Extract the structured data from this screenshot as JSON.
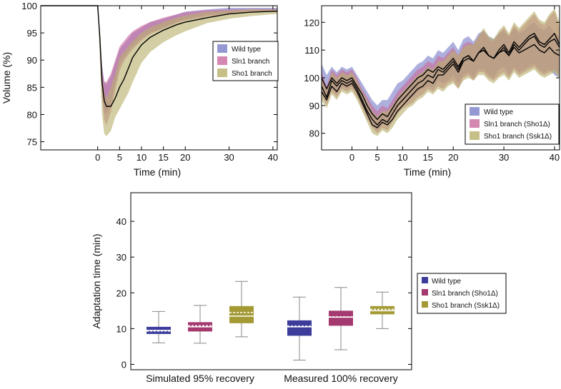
{
  "colors": {
    "wild_type": "#7b7fc8",
    "sln1": "#c96a9d",
    "sho1": "#b8b06a",
    "wild_type_box": "#3c3c9b",
    "sln1_box": "#a4396f",
    "sho1_box": "#a49a35",
    "line": "#000000"
  },
  "chart_data": [
    {
      "type": "area",
      "xlabel": "Time (min)",
      "ylabel": "Volume (%)",
      "xlim": [
        -13,
        41
      ],
      "ylim": [
        73.5,
        100
      ],
      "xticks": [
        0,
        5,
        10,
        15,
        20,
        30,
        40
      ],
      "yticks": [
        75,
        80,
        85,
        90,
        95,
        100
      ],
      "legend_position": "right",
      "legend": [
        "Wild type",
        "Sln1 branch",
        "Sho1 branch"
      ],
      "x": [
        -13,
        0,
        0.5,
        1,
        1.5,
        2,
        3,
        4,
        5,
        6,
        7,
        8,
        10,
        12,
        15,
        18,
        20,
        25,
        30,
        35,
        41
      ],
      "series": [
        {
          "name": "Wild type",
          "upper": [
            100,
            100,
            95,
            89,
            86,
            85.5,
            87,
            89.5,
            92,
            93,
            94,
            95,
            96,
            97,
            97.6,
            98.4,
            98.9,
            99.3,
            99.6,
            99.6,
            99.6
          ],
          "lower": [
            100,
            100,
            93,
            84,
            80.5,
            80,
            82,
            85.5,
            89,
            90.5,
            91.5,
            92.5,
            94,
            95,
            96,
            97,
            97.5,
            98.3,
            98.7,
            99,
            99.1
          ]
        },
        {
          "name": "Sln1 branch",
          "upper": [
            100,
            100,
            94.5,
            88.5,
            86,
            86,
            87.5,
            90,
            92.5,
            93.5,
            94.5,
            95.3,
            96.3,
            97,
            97.8,
            98.4,
            98.8,
            99.2,
            99.3,
            99.4,
            99.4
          ],
          "lower": [
            100,
            100,
            92,
            83,
            79,
            78,
            80.5,
            84.5,
            88,
            89.8,
            91,
            92,
            93.6,
            94.8,
            95.8,
            96.8,
            97.3,
            98,
            98.5,
            98.8,
            99
          ]
        },
        {
          "name": "Sho1 branch",
          "upper": [
            100,
            100,
            94,
            87,
            84,
            83,
            85,
            87.5,
            90.5,
            91.5,
            92.5,
            93.5,
            95,
            96,
            97,
            97.8,
            98.2,
            98.9,
            99.1,
            99.3,
            99.3
          ],
          "lower": [
            100,
            100,
            90,
            80,
            76.5,
            76,
            77,
            79.5,
            81,
            82.5,
            84,
            86,
            89.5,
            91.5,
            93.3,
            94.6,
            95.3,
            96.8,
            97.6,
            98.1,
            98.5
          ]
        }
      ],
      "mean_line": [
        100,
        100,
        94,
        86,
        82.5,
        81.5,
        81.5,
        83,
        85,
        86.5,
        88.5,
        90.5,
        92.8,
        94.2,
        95.5,
        96.5,
        97,
        97.8,
        98.5,
        98.8,
        99
      ]
    },
    {
      "type": "area",
      "xlabel": "Time (min)",
      "ylabel": "",
      "xlim": [
        -6,
        41
      ],
      "ylim": [
        74,
        126
      ],
      "xticks": [
        0,
        5,
        10,
        15,
        20,
        30,
        40
      ],
      "yticks": [
        80,
        90,
        100,
        110,
        120
      ],
      "legend_position": "bottom-right",
      "legend": [
        "Wild type",
        "Sln1 branch (Sho1Δ)",
        "Sho1 branch (Ssk1Δ)"
      ],
      "x": [
        -6,
        -5,
        -4,
        -3,
        -2,
        -1,
        0,
        1,
        2,
        3,
        4,
        5,
        6,
        7,
        8,
        9,
        10,
        11,
        12,
        13,
        14,
        15,
        16,
        17,
        18,
        19,
        20,
        21,
        22,
        23,
        24,
        25,
        26,
        27,
        28,
        29,
        30,
        31,
        32,
        33,
        34,
        35,
        36,
        37,
        38,
        39,
        40,
        41
      ],
      "series": [
        {
          "name": "Wild type",
          "upper": [
            105,
            101,
            104,
            102,
            104,
            103,
            104,
            101,
            98,
            95,
            92,
            90,
            92,
            92,
            95,
            98,
            99,
            101,
            103,
            105,
            106,
            108,
            107,
            110,
            109,
            111,
            113,
            110,
            114,
            115,
            113,
            116,
            117,
            115,
            114,
            116,
            117,
            115,
            118,
            116,
            117,
            119,
            120,
            118,
            117,
            119,
            116,
            115
          ],
          "lower": [
            95,
            92,
            96,
            94,
            97,
            96,
            97,
            94,
            90,
            86,
            83,
            81,
            84,
            83,
            86,
            89,
            91,
            92,
            93,
            95,
            96,
            97,
            96,
            99,
            98,
            99,
            101,
            98,
            101,
            102,
            100,
            103,
            103,
            101,
            100,
            103,
            104,
            101,
            104,
            102,
            103,
            104,
            105,
            103,
            102,
            103,
            101,
            100
          ]
        },
        {
          "name": "Sln1 branch (Sho1Δ)",
          "upper": [
            102,
            97,
            103,
            101,
            103,
            102,
            103,
            100,
            96,
            93,
            90,
            88,
            90,
            89,
            92,
            95,
            97,
            99,
            101,
            103,
            104,
            106,
            105,
            108,
            107,
            109,
            111,
            108,
            112,
            113,
            112,
            115,
            117,
            114,
            113,
            116,
            118,
            115,
            119,
            117,
            119,
            121,
            123,
            120,
            119,
            122,
            124,
            118
          ],
          "lower": [
            94,
            90,
            95,
            93,
            96,
            95,
            96,
            93,
            89,
            85,
            82,
            80,
            82,
            81,
            84,
            87,
            89,
            90,
            91,
            93,
            94,
            96,
            95,
            97,
            96,
            98,
            99,
            96,
            100,
            101,
            99,
            102,
            102,
            100,
            99,
            101,
            102,
            100,
            103,
            101,
            102,
            103,
            104,
            102,
            101,
            102,
            103,
            101
          ]
        },
        {
          "name": "Sho1 branch (Ssk1Δ)",
          "upper": [
            100,
            96,
            102,
            100,
            102,
            101,
            102,
            99,
            95,
            92,
            88,
            86,
            88,
            88,
            90,
            93,
            95,
            97,
            99,
            101,
            102,
            104,
            103,
            106,
            106,
            108,
            110,
            108,
            111,
            112,
            112,
            115,
            118,
            115,
            114,
            117,
            119,
            116,
            120,
            118,
            120,
            122,
            124,
            121,
            120,
            123,
            125,
            120
          ],
          "lower": [
            92,
            89,
            94,
            92,
            95,
            94,
            95,
            92,
            88,
            84,
            80,
            79,
            81,
            80,
            82,
            85,
            87,
            89,
            90,
            92,
            93,
            95,
            94,
            96,
            95,
            97,
            98,
            96,
            99,
            100,
            99,
            101,
            101,
            99,
            98,
            100,
            101,
            99,
            102,
            100,
            101,
            102,
            103,
            101,
            100,
            101,
            102,
            100
          ]
        }
      ],
      "lines": [
        [
          100,
          96,
          100,
          98,
          100,
          99,
          100,
          97,
          94,
          90,
          87,
          85,
          87,
          86,
          89,
          92,
          94,
          96,
          98,
          100,
          101,
          103,
          102,
          104,
          103,
          105,
          107,
          104,
          107,
          108,
          106,
          109,
          110,
          108,
          107,
          109,
          110,
          108,
          111,
          109,
          110,
          111,
          112,
          110,
          109,
          111,
          109,
          108
        ],
        [
          97,
          93,
          99,
          97,
          99,
          98,
          99,
          96,
          92,
          88,
          85,
          83,
          85,
          84,
          87,
          90,
          92,
          94,
          96,
          98,
          99,
          101,
          100,
          103,
          102,
          104,
          106,
          103,
          107,
          108,
          106,
          109,
          110,
          108,
          107,
          109,
          111,
          108,
          112,
          110,
          112,
          114,
          115,
          112,
          111,
          113,
          114,
          111
        ],
        [
          95,
          92,
          97,
          95,
          98,
          97,
          98,
          95,
          91,
          87,
          83,
          82,
          84,
          83,
          85,
          88,
          90,
          92,
          94,
          96,
          97,
          99,
          98,
          101,
          101,
          103,
          105,
          102,
          106,
          107,
          106,
          109,
          111,
          108,
          107,
          110,
          112,
          109,
          113,
          111,
          113,
          115,
          116,
          113,
          112,
          114,
          116,
          112
        ]
      ]
    },
    {
      "type": "box",
      "xlabel": "",
      "ylabel": "Adaptation time (min)",
      "ylim": [
        -1.5,
        48
      ],
      "yticks": [
        0,
        10,
        20,
        30,
        40
      ],
      "categories": [
        "Simulated 95% recovery",
        "Measured 100% recovery"
      ],
      "legend_position": "right",
      "legend": [
        "Wild type",
        "Sln1 branch (Sho1Δ)",
        "Sho1 branch (Ssk1Δ)"
      ],
      "groups": [
        [
          {
            "name": "Wild type",
            "min": 6,
            "q1": 8.5,
            "median": 9.5,
            "mean": 9.3,
            "q3": 10.5,
            "max": 14.8
          },
          {
            "name": "Sln1 branch (Sho1Δ)",
            "min": 5.9,
            "q1": 9.2,
            "median": 10.5,
            "mean": 10.8,
            "q3": 11.8,
            "max": 16.5
          },
          {
            "name": "Sho1 branch (Ssk1Δ)",
            "min": 7.7,
            "q1": 11.5,
            "median": 13.5,
            "mean": 14.5,
            "q3": 16.3,
            "max": 23.2
          }
        ],
        [
          {
            "name": "Wild type",
            "min": 1.2,
            "q1": 8,
            "median": 10.5,
            "mean": 10.7,
            "q3": 12.3,
            "max": 18.8
          },
          {
            "name": "Sln1 branch (Sho1Δ)",
            "min": 4.1,
            "q1": 10.8,
            "median": 13.2,
            "mean": 13.3,
            "q3": 15,
            "max": 21.5
          },
          {
            "name": "Sho1 branch (Ssk1Δ)",
            "min": 10,
            "q1": 14,
            "median": 15,
            "mean": 15.4,
            "q3": 16.3,
            "max": 20.2
          }
        ]
      ]
    }
  ]
}
